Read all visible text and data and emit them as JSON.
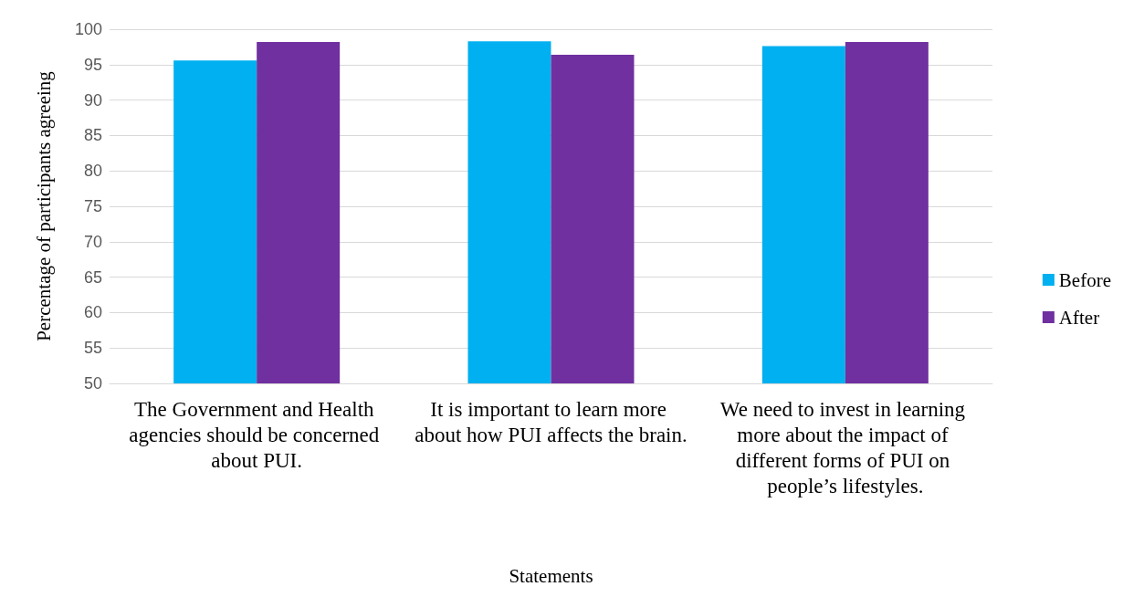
{
  "chart_data": {
    "type": "bar",
    "xlabel": "Statements",
    "ylabel": "Percentage of participants agreeing",
    "categories": [
      "The Government and Health agencies should be concerned about PUI.",
      "It is important to learn more about how PUI affects the brain.",
      "We need to invest in learning more about the impact of different forms of PUI on people’s lifestyles."
    ],
    "series": [
      {
        "name": "Before",
        "color": "#00b0f0",
        "values": [
          95.6,
          98.3,
          97.6
        ]
      },
      {
        "name": "After",
        "color": "#7030a0",
        "values": [
          98.2,
          96.4,
          98.2
        ]
      }
    ],
    "ylim": [
      50,
      100
    ],
    "yticks": [
      50,
      55,
      60,
      65,
      70,
      75,
      80,
      85,
      90,
      95,
      100
    ],
    "grid": "y",
    "legend": "right"
  }
}
